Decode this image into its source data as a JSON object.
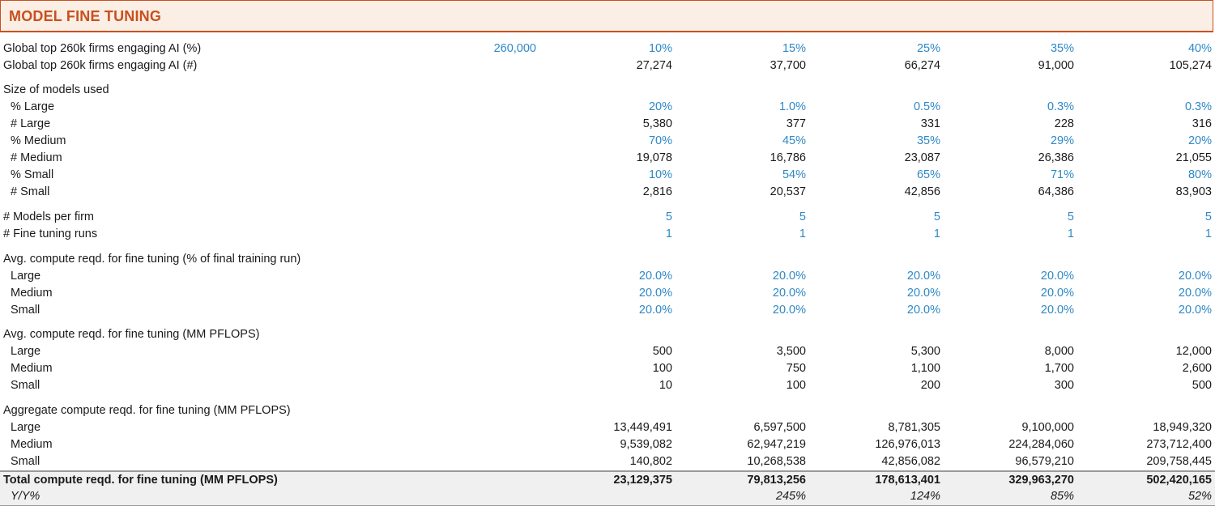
{
  "title": "MODEL FINE TUNING",
  "firms_pct": {
    "label": "Global top 260k firms engaging AI (%)",
    "base": "260,000",
    "values": [
      "10%",
      "15%",
      "25%",
      "35%",
      "40%"
    ]
  },
  "firms_num": {
    "label": "Global top 260k firms engaging AI (#)",
    "values": [
      "27,274",
      "37,700",
      "66,274",
      "91,000",
      "105,274"
    ]
  },
  "size_header": "Size of models used",
  "pct_large": {
    "label": "% Large",
    "values": [
      "20%",
      "1.0%",
      "0.5%",
      "0.3%",
      "0.3%"
    ]
  },
  "num_large": {
    "label": "# Large",
    "values": [
      "5,380",
      "377",
      "331",
      "228",
      "316"
    ]
  },
  "pct_medium": {
    "label": "% Medium",
    "values": [
      "70%",
      "45%",
      "35%",
      "29%",
      "20%"
    ]
  },
  "num_medium": {
    "label": "# Medium",
    "values": [
      "19,078",
      "16,786",
      "23,087",
      "26,386",
      "21,055"
    ]
  },
  "pct_small": {
    "label": "% Small",
    "values": [
      "10%",
      "54%",
      "65%",
      "71%",
      "80%"
    ]
  },
  "num_small": {
    "label": "# Small",
    "values": [
      "2,816",
      "20,537",
      "42,856",
      "64,386",
      "83,903"
    ]
  },
  "models_per_firm": {
    "label": "# Models per firm",
    "values": [
      "5",
      "5",
      "5",
      "5",
      "5"
    ]
  },
  "fine_tuning_runs": {
    "label": "# Fine tuning runs",
    "values": [
      "1",
      "1",
      "1",
      "1",
      "1"
    ]
  },
  "avg_pct_header": "Avg. compute reqd. for fine tuning (% of final training run)",
  "avg_pct_large": {
    "label": "Large",
    "values": [
      "20.0%",
      "20.0%",
      "20.0%",
      "20.0%",
      "20.0%"
    ]
  },
  "avg_pct_medium": {
    "label": "Medium",
    "values": [
      "20.0%",
      "20.0%",
      "20.0%",
      "20.0%",
      "20.0%"
    ]
  },
  "avg_pct_small": {
    "label": "Small",
    "values": [
      "20.0%",
      "20.0%",
      "20.0%",
      "20.0%",
      "20.0%"
    ]
  },
  "avg_mm_header": "Avg. compute reqd. for fine tuning (MM PFLOPS)",
  "avg_mm_large": {
    "label": "Large",
    "values": [
      "500",
      "3,500",
      "5,300",
      "8,000",
      "12,000"
    ]
  },
  "avg_mm_medium": {
    "label": "Medium",
    "values": [
      "100",
      "750",
      "1,100",
      "1,700",
      "2,600"
    ]
  },
  "avg_mm_small": {
    "label": "Small",
    "values": [
      "10",
      "100",
      "200",
      "300",
      "500"
    ]
  },
  "agg_header": "Aggregate compute reqd. for fine tuning (MM PFLOPS)",
  "agg_large": {
    "label": "Large",
    "values": [
      "13,449,491",
      "6,597,500",
      "8,781,305",
      "9,100,000",
      "18,949,320"
    ]
  },
  "agg_medium": {
    "label": "Medium",
    "values": [
      "9,539,082",
      "62,947,219",
      "126,976,013",
      "224,284,060",
      "273,712,400"
    ]
  },
  "agg_small": {
    "label": "Small",
    "values": [
      "140,802",
      "10,268,538",
      "42,856,082",
      "96,579,210",
      "209,758,445"
    ]
  },
  "total": {
    "label": "Total compute reqd. for fine tuning (MM PFLOPS)",
    "values": [
      "23,129,375",
      "79,813,256",
      "178,613,401",
      "329,963,270",
      "502,420,165"
    ]
  },
  "yoy": {
    "label": "Y/Y%",
    "values": [
      "",
      "245%",
      "124%",
      "85%",
      "52%"
    ]
  }
}
